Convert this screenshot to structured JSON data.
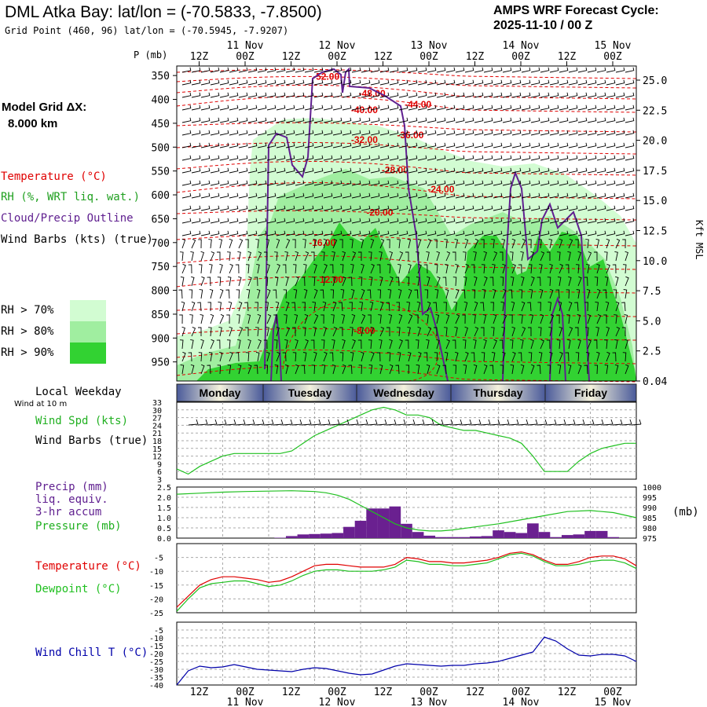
{
  "header": {
    "title": "DML Atka Bay:  lat/lon = (-70.5833, -7.8500)",
    "grid_point": "Grid Point (460, 96) lat/lon = (-70.5945, -7.9207)",
    "cycle_line1": "AMPS WRF Forecast Cycle:",
    "cycle_line2": "2025-11-10 / 00  Z"
  },
  "left_panel": {
    "model_grid_line1": "Model Grid ΔX:",
    "model_grid_line2": "8.000 km",
    "temperature_label": "Temperature (°C)",
    "rh_label": "RH (%, WRT liq. wat.)",
    "cloud_label": "Cloud/Precip Outline",
    "wind_label": "Wind Barbs (kts) (true)",
    "rh_legend": [
      {
        "label": "RH > 70%",
        "color": "#d2fcd2"
      },
      {
        "label": "RH > 80%",
        "color": "#a0eea0"
      },
      {
        "label": "RH > 90%",
        "color": "#32d232"
      }
    ]
  },
  "colors": {
    "temperature": "#e00000",
    "dewpoint": "#20c020",
    "cloud_outline": "#602090",
    "wind_chill": "#0000aa",
    "rh70": "#d2fcd2",
    "rh80": "#a0eea0",
    "rh90": "#32d232",
    "precip": "#6a2090"
  },
  "chart_data": [
    {
      "type": "heatmap",
      "name": "cross-section",
      "ylabel_left": "P (mb)",
      "ylabel_right": "Kft MSL",
      "pressure_ticks": [
        "350",
        "400",
        "450",
        "500",
        "550",
        "600",
        "650",
        "700",
        "750",
        "800",
        "850",
        "900",
        "950"
      ],
      "height_ticks": [
        "25.0",
        "22.5",
        "20.0",
        "17.5",
        "15.0",
        "12.5",
        "10.0",
        "7.5",
        "5.0",
        "2.5",
        "0.04"
      ],
      "x_ticks_top": [
        "12Z",
        "00Z",
        "12Z",
        "00Z",
        "12Z",
        "00Z",
        "12Z",
        "00Z",
        "12Z",
        "00Z"
      ],
      "x_ticks_hours": [
        12,
        24,
        36,
        48,
        60,
        72,
        84,
        96,
        108,
        120
      ],
      "date_labels": [
        {
          "text": "11 Nov",
          "hour": 24
        },
        {
          "text": "12 Nov",
          "hour": 48
        },
        {
          "text": "13 Nov",
          "hour": 72
        },
        {
          "text": "14 Nov",
          "hour": 96
        },
        {
          "text": "15 Nov",
          "hour": 120
        }
      ],
      "temperature_isotherm_labels": [
        {
          "text": "-52.00",
          "hour": 39,
          "p": 352
        },
        {
          "text": "-48.00",
          "hour": 51,
          "p": 388
        },
        {
          "text": "-44.00",
          "hour": 63,
          "p": 411
        },
        {
          "text": "-40.00",
          "hour": 49,
          "p": 422
        },
        {
          "text": "-36.00",
          "hour": 61,
          "p": 475
        },
        {
          "text": "-32.00",
          "hour": 49,
          "p": 485
        },
        {
          "text": "-28.00",
          "hour": 57,
          "p": 548
        },
        {
          "text": "-24.00",
          "hour": 69,
          "p": 588
        },
        {
          "text": "-20.00",
          "hour": 53,
          "p": 637
        },
        {
          "text": "-16.00",
          "hour": 38,
          "p": 700
        },
        {
          "text": "-12.00",
          "hour": 40,
          "p": 778
        },
        {
          "text": "-8.00",
          "hour": 49,
          "p": 885
        }
      ]
    },
    {
      "type": "line",
      "name": "wind-speed",
      "title": "Local Weekday",
      "subtitle": "Wind at 10 m",
      "weekdays": [
        "Monday",
        "Tuesday",
        "Wednesday",
        "Thursday",
        "Friday"
      ],
      "label_speed": "Wind Spd (kts)",
      "label_barbs": "Wind Barbs (true)",
      "y_ticks": [
        "33",
        "30",
        "27",
        "24",
        "21",
        "18",
        "15",
        "12",
        "9",
        "6",
        "3"
      ],
      "ylim": [
        3,
        33
      ],
      "x": [
        0,
        3,
        6,
        9,
        12,
        15,
        18,
        21,
        24,
        27,
        30,
        33,
        36,
        39,
        42,
        45,
        48,
        51,
        54,
        57,
        60,
        63,
        66,
        69,
        72,
        75,
        78,
        81,
        84,
        87,
        90,
        93,
        96,
        99,
        102,
        105,
        108,
        111,
        114,
        117,
        120
      ],
      "values": [
        7,
        5,
        8,
        10,
        12,
        13,
        13,
        13,
        13,
        13,
        14,
        17,
        20,
        22,
        24,
        26,
        28,
        30,
        31,
        30,
        28,
        28,
        27,
        24,
        23,
        22,
        22,
        21,
        20,
        19,
        17,
        12,
        6,
        6,
        6,
        10,
        13,
        15,
        16,
        17,
        17
      ]
    },
    {
      "type": "bar",
      "name": "precip-pressure",
      "label_precip_1": "Precip (mm)",
      "label_precip_2": "liq. equiv.",
      "label_precip_3": "3-hr accum",
      "label_pressure": "Pressure (mb)",
      "right_unit": "(mb)",
      "precip_ticks": [
        "2.5",
        "2.0",
        "1.5",
        "1.0",
        "0.5",
        "0.0"
      ],
      "pressure_ticks": [
        "1000",
        "995",
        "990",
        "985",
        "980",
        "975"
      ],
      "precip_ylim": [
        0,
        2.5
      ],
      "pressure_ylim": [
        975,
        1000
      ],
      "precip_x": [
        27,
        30,
        33,
        36,
        39,
        42,
        45,
        48,
        51,
        54,
        57,
        60,
        63,
        66,
        69,
        72,
        75,
        78,
        81,
        84,
        87,
        90,
        93,
        96,
        99,
        102,
        105,
        108,
        111,
        114
      ],
      "precip_values": [
        0.02,
        0.1,
        0.18,
        0.2,
        0.22,
        0.25,
        0.55,
        0.85,
        1.45,
        1.45,
        1.55,
        0.7,
        0.3,
        0.12,
        0.05,
        0.05,
        0.05,
        0.08,
        0.1,
        0.38,
        0.3,
        0.25,
        0.72,
        0.3,
        0.05,
        0.15,
        0.18,
        0.35,
        0.35,
        0.05
      ],
      "pressure_x": [
        0,
        6,
        12,
        18,
        24,
        30,
        36,
        39,
        42,
        45,
        48,
        51,
        54,
        57,
        60,
        63,
        66,
        69,
        72,
        78,
        84,
        90,
        96,
        102,
        108,
        114,
        120
      ],
      "pressure_values": [
        996.5,
        997,
        997.5,
        997.8,
        998,
        998.2,
        997.8,
        997.2,
        996,
        994,
        991,
        988,
        985,
        982,
        980,
        979,
        978.5,
        978.5,
        979,
        980.5,
        982,
        984,
        986,
        988,
        988.5,
        987.5,
        985
      ]
    },
    {
      "type": "line",
      "name": "temperature-dewpoint",
      "label_temperature": "Temperature (°C)",
      "label_dewpoint": "Dewpoint (°C)",
      "y_ticks": [
        "-5",
        "-10",
        "-15",
        "-20",
        "-25"
      ],
      "ylim": [
        -25,
        0
      ],
      "x": [
        0,
        3,
        6,
        9,
        12,
        15,
        18,
        21,
        24,
        27,
        30,
        33,
        36,
        39,
        42,
        45,
        48,
        51,
        54,
        57,
        60,
        63,
        66,
        69,
        72,
        75,
        78,
        81,
        84,
        87,
        90,
        93,
        96,
        99,
        102,
        105,
        108,
        111,
        114,
        117,
        120
      ],
      "series": [
        {
          "name": "Temperature",
          "values": [
            -23,
            -19,
            -15,
            -13,
            -12,
            -12,
            -12.5,
            -13,
            -14,
            -13.5,
            -12,
            -10,
            -8,
            -7.5,
            -7.5,
            -8,
            -8.5,
            -8.5,
            -8.5,
            -7.5,
            -5,
            -5.5,
            -6.5,
            -6.5,
            -7,
            -7,
            -6.5,
            -6,
            -5,
            -3.5,
            -3,
            -4,
            -6,
            -7.5,
            -7.5,
            -6.5,
            -5,
            -4.5,
            -4.5,
            -5.5,
            -8
          ]
        },
        {
          "name": "Dewpoint",
          "values": [
            -24.5,
            -20,
            -16,
            -14.5,
            -14,
            -13.5,
            -13.5,
            -14.5,
            -15.5,
            -15,
            -13.5,
            -11.5,
            -10,
            -9.5,
            -9.5,
            -10,
            -10,
            -10,
            -9.5,
            -8.5,
            -6,
            -6.5,
            -7.5,
            -7.5,
            -8,
            -8,
            -7.5,
            -7,
            -5.5,
            -4,
            -3.5,
            -4.5,
            -6.5,
            -8,
            -8,
            -7.5,
            -6.5,
            -6,
            -6,
            -7,
            -9
          ]
        }
      ]
    },
    {
      "type": "line",
      "name": "wind-chill",
      "label": "Wind Chill T (°C)",
      "y_ticks": [
        "-5",
        "-10",
        "-15",
        "-20",
        "-25",
        "-30",
        "-35",
        "-40"
      ],
      "ylim": [
        -40,
        0
      ],
      "x": [
        0,
        3,
        6,
        9,
        12,
        15,
        18,
        21,
        24,
        27,
        30,
        33,
        36,
        39,
        42,
        45,
        48,
        51,
        54,
        57,
        60,
        63,
        66,
        69,
        72,
        75,
        78,
        81,
        84,
        87,
        90,
        93,
        96,
        99,
        102,
        105,
        108,
        111,
        114,
        117,
        120
      ],
      "values": [
        -40,
        -31,
        -28,
        -29,
        -28.5,
        -27,
        -28.5,
        -30,
        -30.5,
        -31,
        -31.5,
        -30,
        -29,
        -29.5,
        -31,
        -32.5,
        -33.5,
        -33,
        -30.5,
        -28,
        -26.5,
        -27,
        -27.5,
        -28,
        -27.5,
        -27.5,
        -26.5,
        -26,
        -25,
        -23,
        -21,
        -19,
        -9.5,
        -12,
        -17,
        -21,
        -21.5,
        -20.5,
        -20.5,
        -21.5,
        -25
      ]
    }
  ],
  "bottom_axis": {
    "x_ticks": [
      "12Z",
      "00Z",
      "12Z",
      "00Z",
      "12Z",
      "00Z",
      "12Z",
      "00Z",
      "12Z",
      "00Z"
    ],
    "date_labels": [
      "11 Nov",
      "12 Nov",
      "13 Nov",
      "14 Nov",
      "15 Nov"
    ]
  }
}
